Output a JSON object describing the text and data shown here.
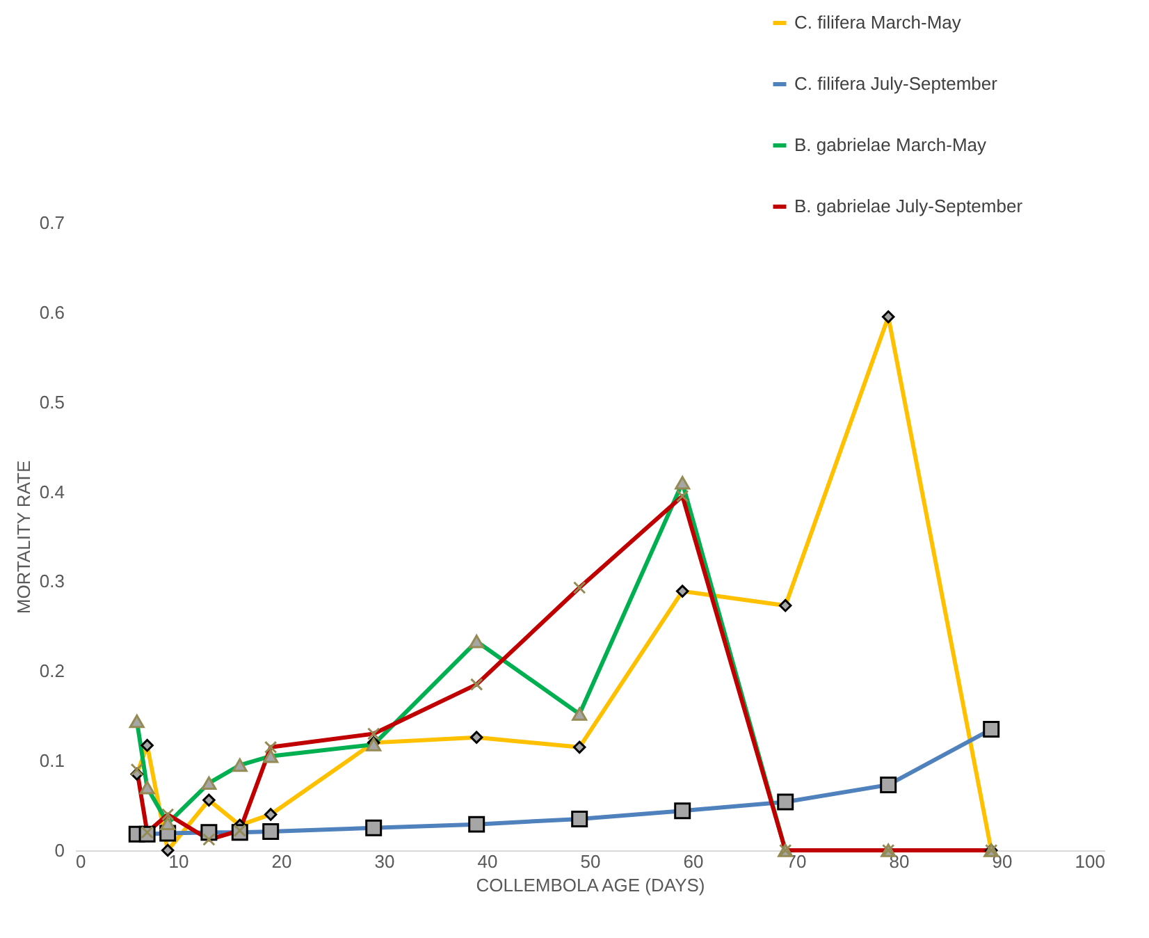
{
  "chart_data": {
    "type": "line",
    "xlabel": "COLLEMBOLA AGE (DAYS)",
    "ylabel": "MORTALITY RATE",
    "x": [
      6,
      7,
      9,
      13,
      16,
      19,
      29,
      39,
      49,
      59,
      69,
      79,
      89
    ],
    "xlim": [
      0,
      100
    ],
    "xticks": [
      0,
      10,
      20,
      30,
      40,
      50,
      60,
      70,
      80,
      90,
      100
    ],
    "ylim": [
      0,
      0.7
    ],
    "yticks": [
      0,
      0.1,
      0.2,
      0.3,
      0.4,
      0.5,
      0.6,
      0.7
    ],
    "grid": false,
    "legend": "top right",
    "series": [
      {
        "name": "C. filifera March-May",
        "color": "#ffc000",
        "marker": "diamond",
        "values": [
          0.085,
          0.117,
          0,
          0.056,
          0.028,
          0.04,
          0.12,
          0.126,
          0.115,
          0.289,
          0.273,
          0.595,
          0
        ]
      },
      {
        "name": "C. filifera July-September",
        "color": "#4f81bd",
        "marker": "square",
        "values": [
          0.018,
          0.018,
          0.019,
          0.02,
          0.02,
          0.021,
          0.025,
          0.029,
          0.035,
          0.044,
          0.054,
          0.073,
          0.135
        ]
      },
      {
        "name": "B. gabrielae March-May",
        "color": "#00b050",
        "marker": "triangle",
        "values": [
          0.144,
          0.07,
          0.03,
          0.075,
          0.095,
          0.105,
          0.118,
          0.233,
          0.152,
          0.41,
          0,
          0,
          0
        ]
      },
      {
        "name": "B. gabrielae July-September",
        "color": "#c00000",
        "marker": "cross",
        "values": [
          0.09,
          0.02,
          0.04,
          0.012,
          0.022,
          0.115,
          0.13,
          0.185,
          0.293,
          0.395,
          0,
          0,
          0
        ]
      }
    ]
  }
}
